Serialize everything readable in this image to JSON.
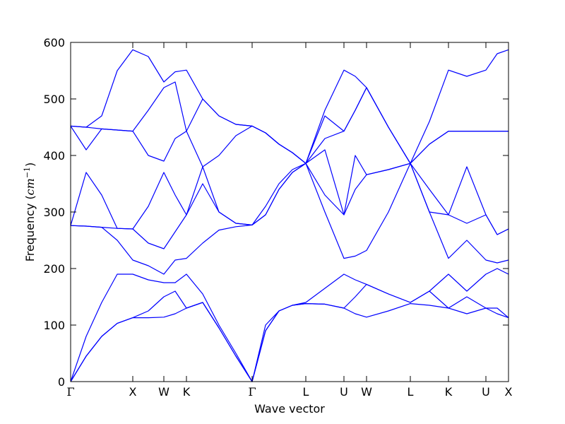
{
  "chart_data": {
    "type": "line",
    "xlabel": "Wave vector",
    "ylabel_parts": [
      "Frequency (",
      "cm",
      "−1",
      ")"
    ],
    "color": "#0000ff",
    "xlim": [
      0,
      6.2
    ],
    "ylim": [
      0,
      600
    ],
    "yticks": [
      0,
      100,
      200,
      300,
      400,
      500,
      600
    ],
    "xticks": [
      {
        "value": 0,
        "label": "Γ"
      },
      {
        "value": 0.88,
        "label": "X"
      },
      {
        "value": 1.32,
        "label": "W"
      },
      {
        "value": 1.64,
        "label": "K"
      },
      {
        "value": 2.57,
        "label": "Γ"
      },
      {
        "value": 3.33,
        "label": "L"
      },
      {
        "value": 3.87,
        "label": "U"
      },
      {
        "value": 4.19,
        "label": "W"
      },
      {
        "value": 4.81,
        "label": "L"
      },
      {
        "value": 5.35,
        "label": "K"
      },
      {
        "value": 5.88,
        "label": "U"
      },
      {
        "value": 6.2,
        "label": "X"
      }
    ],
    "x": [
      0,
      0.22,
      0.44,
      0.66,
      0.88,
      1.1,
      1.32,
      1.48,
      1.64,
      1.87,
      2.1,
      2.34,
      2.57,
      2.76,
      2.95,
      3.14,
      3.33,
      3.6,
      3.87,
      4.03,
      4.19,
      4.5,
      4.81,
      5.08,
      5.35,
      5.61,
      5.88,
      6.04,
      6.2
    ],
    "series": [
      {
        "values": [
          0,
          45,
          80,
          103,
          113,
          113,
          114,
          120,
          130,
          140,
          95,
          45,
          0,
          90,
          125,
          135,
          138,
          137,
          130,
          120,
          114,
          125,
          138,
          135,
          130,
          120,
          130,
          120,
          113
        ]
      },
      {
        "values": [
          0,
          45,
          80,
          103,
          113,
          125,
          150,
          160,
          130,
          140,
          95,
          45,
          0,
          90,
          125,
          135,
          138,
          137,
          130,
          150,
          172,
          155,
          140,
          160,
          130,
          150,
          130,
          130,
          113
        ]
      },
      {
        "values": [
          0,
          80,
          140,
          190,
          190,
          180,
          175,
          175,
          190,
          155,
          100,
          50,
          0,
          100,
          125,
          135,
          140,
          165,
          190,
          180,
          172,
          155,
          140,
          160,
          190,
          160,
          190,
          200,
          190
        ]
      },
      {
        "values": [
          276,
          275,
          273,
          250,
          215,
          205,
          190,
          215,
          218,
          245,
          268,
          274,
          277,
          295,
          340,
          370,
          386,
          300,
          218,
          222,
          232,
          300,
          386,
          300,
          218,
          250,
          215,
          210,
          215
        ]
      },
      {
        "values": [
          276,
          275,
          273,
          271,
          270,
          245,
          235,
          265,
          295,
          350,
          300,
          280,
          277,
          295,
          340,
          370,
          386,
          330,
          295,
          340,
          366,
          375,
          386,
          300,
          295,
          280,
          295,
          260,
          270
        ]
      },
      {
        "values": [
          276,
          370,
          330,
          271,
          270,
          310,
          370,
          330,
          295,
          380,
          300,
          280,
          277,
          310,
          350,
          375,
          386,
          410,
          295,
          400,
          366,
          375,
          386,
          340,
          295,
          380,
          295,
          260,
          270
        ]
      },
      {
        "values": [
          452,
          410,
          447,
          445,
          443,
          400,
          390,
          430,
          443,
          380,
          400,
          435,
          452,
          440,
          420,
          405,
          386,
          430,
          443,
          480,
          520,
          450,
          386,
          420,
          443,
          443,
          443,
          443,
          443
        ]
      },
      {
        "values": [
          452,
          450,
          447,
          445,
          443,
          480,
          520,
          530,
          443,
          500,
          470,
          455,
          452,
          440,
          420,
          405,
          386,
          470,
          443,
          480,
          520,
          450,
          386,
          420,
          443,
          443,
          443,
          443,
          443
        ]
      },
      {
        "values": [
          452,
          450,
          470,
          550,
          587,
          575,
          530,
          548,
          551,
          500,
          470,
          455,
          452,
          440,
          420,
          405,
          386,
          480,
          551,
          540,
          520,
          450,
          386,
          460,
          551,
          540,
          551,
          580,
          587
        ]
      }
    ]
  }
}
